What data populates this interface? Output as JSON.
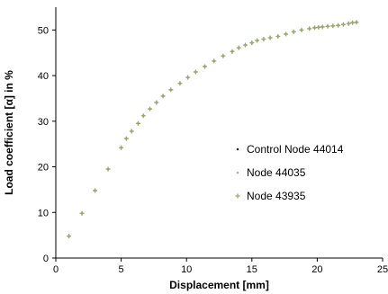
{
  "chart_data": {
    "type": "scatter",
    "title": "",
    "xlabel": "Displacement [mm]",
    "ylabel": "Load coefficient [α] in %",
    "xlim": [
      0,
      25
    ],
    "ylim": [
      0,
      55
    ],
    "xticks": [
      "0",
      "5",
      "10",
      "15",
      "20",
      "25"
    ],
    "yticks": [
      "0",
      "10",
      "20",
      "30",
      "40",
      "50"
    ],
    "grid": false,
    "legend_position": "right",
    "series": [
      {
        "name": "Control Node 44014",
        "color": "#2b2b2b",
        "marker": "dot",
        "points": [
          [
            1.0,
            4.8
          ],
          [
            2.0,
            9.8
          ],
          [
            3.0,
            14.8
          ],
          [
            4.0,
            19.5
          ],
          [
            5.0,
            24.2
          ],
          [
            5.4,
            26.2
          ],
          [
            5.8,
            27.8
          ],
          [
            6.3,
            29.5
          ],
          [
            6.7,
            31.2
          ],
          [
            7.2,
            32.7
          ],
          [
            7.7,
            34.1
          ],
          [
            8.2,
            35.5
          ],
          [
            8.8,
            36.9
          ],
          [
            9.5,
            38.3
          ],
          [
            10.1,
            39.6
          ],
          [
            10.7,
            40.8
          ],
          [
            11.4,
            42.0
          ],
          [
            12.1,
            43.2
          ],
          [
            12.8,
            44.3
          ],
          [
            13.5,
            45.3
          ],
          [
            14.0,
            46.1
          ],
          [
            14.5,
            46.7
          ],
          [
            15.0,
            47.2
          ],
          [
            15.4,
            47.7
          ],
          [
            15.9,
            48.0
          ],
          [
            16.4,
            48.3
          ],
          [
            17.0,
            48.6
          ],
          [
            17.6,
            49.1
          ],
          [
            18.2,
            49.6
          ],
          [
            18.8,
            50.0
          ],
          [
            19.4,
            50.3
          ],
          [
            19.8,
            50.5
          ],
          [
            20.1,
            50.6
          ],
          [
            20.4,
            50.7
          ],
          [
            20.8,
            50.8
          ],
          [
            21.2,
            50.9
          ],
          [
            21.6,
            51.0
          ],
          [
            22.0,
            51.2
          ],
          [
            22.4,
            51.4
          ],
          [
            22.7,
            51.6
          ],
          [
            23.0,
            51.7
          ]
        ]
      },
      {
        "name": "Node 44035",
        "color": "#b0b0b0",
        "marker": "dot",
        "points": [
          [
            1.0,
            4.8
          ],
          [
            2.0,
            9.8
          ],
          [
            3.0,
            14.8
          ],
          [
            4.0,
            19.5
          ],
          [
            5.0,
            24.2
          ],
          [
            5.4,
            26.2
          ],
          [
            5.8,
            27.8
          ],
          [
            6.3,
            29.5
          ],
          [
            6.7,
            31.2
          ],
          [
            7.2,
            32.7
          ],
          [
            7.7,
            34.1
          ],
          [
            8.2,
            35.5
          ],
          [
            8.8,
            36.9
          ],
          [
            9.5,
            38.3
          ],
          [
            10.1,
            39.6
          ],
          [
            10.7,
            40.8
          ],
          [
            11.4,
            42.0
          ],
          [
            12.1,
            43.2
          ],
          [
            12.8,
            44.3
          ],
          [
            13.5,
            45.3
          ],
          [
            14.0,
            46.1
          ],
          [
            14.5,
            46.7
          ],
          [
            15.0,
            47.2
          ],
          [
            15.4,
            47.7
          ],
          [
            15.9,
            48.0
          ],
          [
            16.4,
            48.3
          ],
          [
            17.0,
            48.6
          ],
          [
            17.6,
            49.1
          ],
          [
            18.2,
            49.6
          ],
          [
            18.8,
            50.0
          ],
          [
            19.4,
            50.3
          ],
          [
            19.8,
            50.5
          ],
          [
            20.1,
            50.6
          ],
          [
            20.4,
            50.7
          ],
          [
            20.8,
            50.8
          ],
          [
            21.2,
            50.9
          ],
          [
            21.6,
            51.0
          ],
          [
            22.0,
            51.2
          ],
          [
            22.4,
            51.4
          ],
          [
            22.7,
            51.6
          ],
          [
            23.0,
            51.7
          ]
        ]
      },
      {
        "name": "Node 43935",
        "color": "#9aa86a",
        "marker": "plus",
        "points": [
          [
            1.0,
            4.8
          ],
          [
            2.0,
            9.8
          ],
          [
            3.0,
            14.8
          ],
          [
            4.0,
            19.5
          ],
          [
            5.0,
            24.2
          ],
          [
            5.4,
            26.2
          ],
          [
            5.8,
            27.8
          ],
          [
            6.3,
            29.5
          ],
          [
            6.7,
            31.2
          ],
          [
            7.2,
            32.7
          ],
          [
            7.7,
            34.1
          ],
          [
            8.2,
            35.5
          ],
          [
            8.8,
            36.9
          ],
          [
            9.5,
            38.3
          ],
          [
            10.1,
            39.6
          ],
          [
            10.7,
            40.8
          ],
          [
            11.4,
            42.0
          ],
          [
            12.1,
            43.2
          ],
          [
            12.8,
            44.3
          ],
          [
            13.5,
            45.3
          ],
          [
            14.0,
            46.1
          ],
          [
            14.5,
            46.7
          ],
          [
            15.0,
            47.2
          ],
          [
            15.4,
            47.7
          ],
          [
            15.9,
            48.0
          ],
          [
            16.4,
            48.3
          ],
          [
            17.0,
            48.6
          ],
          [
            17.6,
            49.1
          ],
          [
            18.2,
            49.6
          ],
          [
            18.8,
            50.0
          ],
          [
            19.4,
            50.3
          ],
          [
            19.8,
            50.5
          ],
          [
            20.1,
            50.6
          ],
          [
            20.4,
            50.7
          ],
          [
            20.8,
            50.8
          ],
          [
            21.2,
            50.9
          ],
          [
            21.6,
            51.0
          ],
          [
            22.0,
            51.2
          ],
          [
            22.4,
            51.4
          ],
          [
            22.7,
            51.6
          ],
          [
            23.0,
            51.7
          ]
        ]
      }
    ]
  }
}
